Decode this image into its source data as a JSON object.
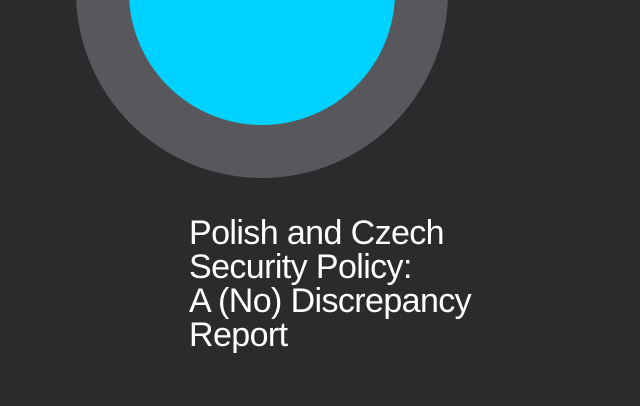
{
  "cover": {
    "title_lines": [
      "Polish and Czech",
      "Security Policy:",
      "A (No) Discrepancy",
      "Report"
    ],
    "colors": {
      "background": "#2b2b2e",
      "outer_ring": "#58585c",
      "inner_circle": "#00d2ff",
      "title_text": "#ffffff"
    }
  }
}
